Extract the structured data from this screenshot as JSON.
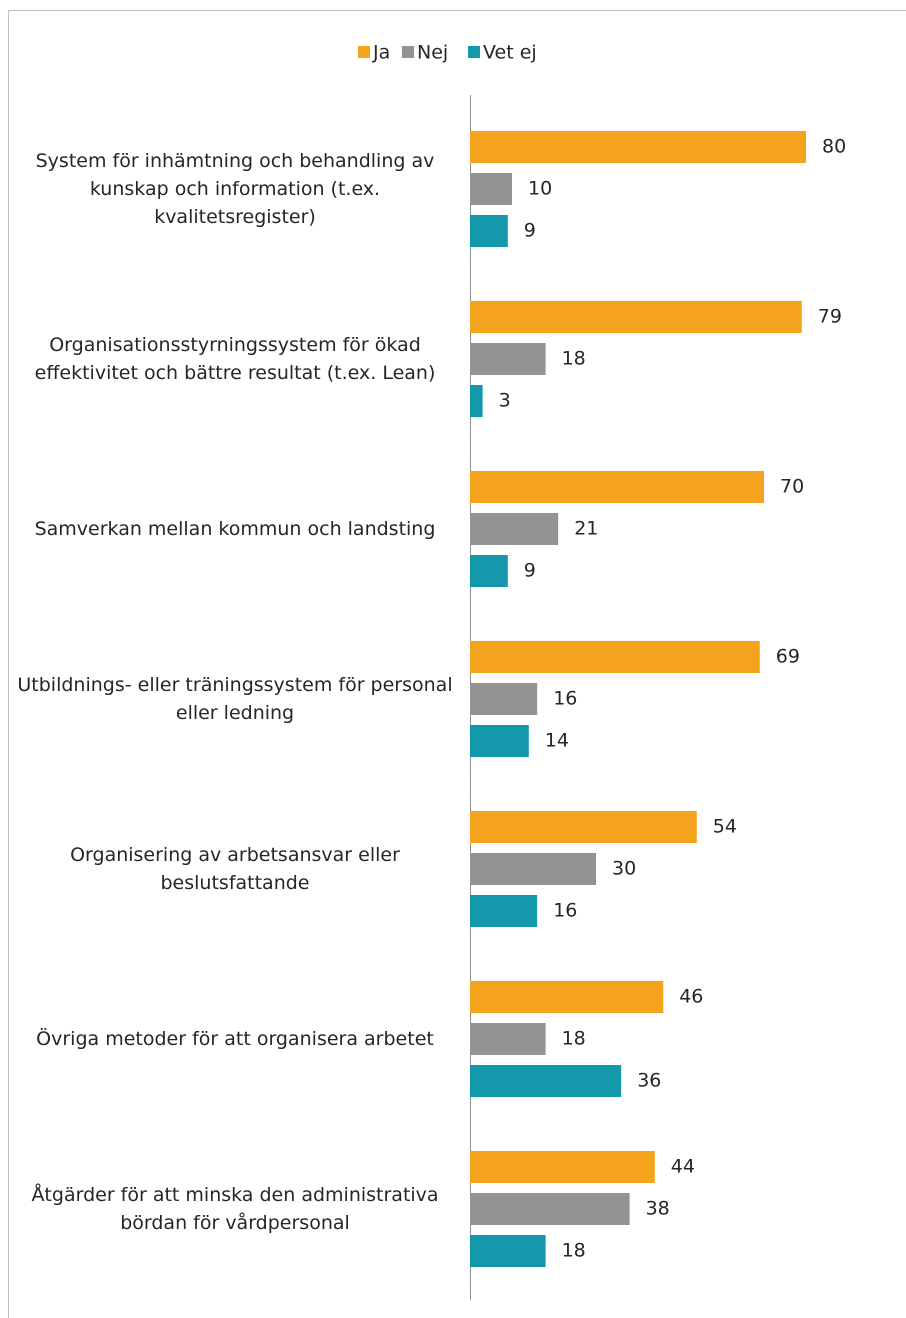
{
  "chart_data": {
    "type": "bar",
    "orientation": "horizontal",
    "categories": [
      "System för inhämtning och behandling av kunskap och information (t.ex. kvalitetsregister)",
      "Organisationsstyrningssystem för ökad effektivitet och bättre resultat (t.ex. Lean)",
      "Samverkan mellan kommun och landsting",
      "Utbildnings- eller träningssystem för personal eller ledning",
      "Organisering av arbetsansvar eller beslutsfattande",
      "Övriga metoder för att organisera arbetet",
      "Åtgärder för att minska den administrativa bördan för vårdpersonal"
    ],
    "series": [
      {
        "name": "Ja",
        "color": "#f5a31d",
        "values": [
          80,
          79,
          70,
          69,
          54,
          46,
          44
        ]
      },
      {
        "name": "Nej",
        "color": "#939393",
        "values": [
          10,
          18,
          21,
          16,
          30,
          18,
          38
        ]
      },
      {
        "name": "Vet ej",
        "color": "#1498ab",
        "values": [
          9,
          3,
          9,
          14,
          16,
          36,
          18
        ]
      }
    ],
    "legend": "top"
  }
}
